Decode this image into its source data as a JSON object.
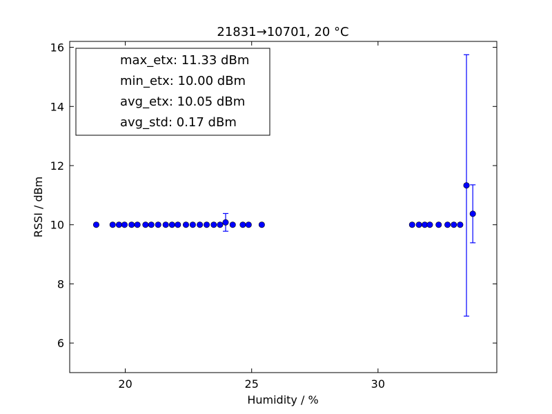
{
  "chart_data": {
    "type": "scatter",
    "title": "21831→10701, 20 °C",
    "xlabel": "Humidity / %",
    "ylabel": "RSSI / dBm",
    "xlim": [
      17.8,
      34.7
    ],
    "ylim": [
      5,
      16.2
    ],
    "xticks": [
      20,
      25,
      30
    ],
    "yticks": [
      6,
      8,
      10,
      12,
      14,
      16
    ],
    "grid": false,
    "legend_placement": "top-left",
    "legend": [
      "max_etx: 11.33 dBm",
      "min_etx: 10.00 dBm",
      "avg_etx: 10.05 dBm",
      "avg_std: 0.17 dBm"
    ],
    "marker_color": "#0000ff",
    "series": [
      {
        "points": [
          {
            "x": 18.85,
            "y": 10.0,
            "err": 0
          },
          {
            "x": 19.5,
            "y": 10.0,
            "err": 0
          },
          {
            "x": 19.75,
            "y": 10.0,
            "err": 0
          },
          {
            "x": 19.97,
            "y": 10.0,
            "err": 0
          },
          {
            "x": 20.25,
            "y": 10.0,
            "err": 0
          },
          {
            "x": 20.48,
            "y": 10.0,
            "err": 0
          },
          {
            "x": 20.8,
            "y": 10.0,
            "err": 0
          },
          {
            "x": 21.03,
            "y": 10.0,
            "err": 0
          },
          {
            "x": 21.3,
            "y": 10.0,
            "err": 0
          },
          {
            "x": 21.6,
            "y": 10.0,
            "err": 0
          },
          {
            "x": 21.85,
            "y": 10.0,
            "err": 0
          },
          {
            "x": 22.08,
            "y": 10.0,
            "err": 0
          },
          {
            "x": 22.4,
            "y": 10.0,
            "err": 0
          },
          {
            "x": 22.67,
            "y": 10.0,
            "err": 0
          },
          {
            "x": 22.95,
            "y": 10.0,
            "err": 0
          },
          {
            "x": 23.22,
            "y": 10.0,
            "err": 0
          },
          {
            "x": 23.5,
            "y": 10.0,
            "err": 0
          },
          {
            "x": 23.75,
            "y": 10.0,
            "err": 0
          },
          {
            "x": 23.97,
            "y": 10.08,
            "err": 0.3
          },
          {
            "x": 24.25,
            "y": 10.0,
            "err": 0
          },
          {
            "x": 24.65,
            "y": 10.0,
            "err": 0
          },
          {
            "x": 24.88,
            "y": 10.0,
            "err": 0
          },
          {
            "x": 25.4,
            "y": 10.0,
            "err": 0
          },
          {
            "x": 31.35,
            "y": 10.0,
            "err": 0
          },
          {
            "x": 31.62,
            "y": 10.0,
            "err": 0
          },
          {
            "x": 31.85,
            "y": 10.0,
            "err": 0
          },
          {
            "x": 32.05,
            "y": 10.0,
            "err": 0
          },
          {
            "x": 32.4,
            "y": 10.0,
            "err": 0
          },
          {
            "x": 32.75,
            "y": 10.0,
            "err": 0
          },
          {
            "x": 33.0,
            "y": 10.0,
            "err": 0
          },
          {
            "x": 33.25,
            "y": 10.0,
            "err": 0
          },
          {
            "x": 33.5,
            "y": 11.33,
            "err": 4.42
          },
          {
            "x": 33.75,
            "y": 10.37,
            "err": 0.98
          }
        ]
      }
    ]
  }
}
